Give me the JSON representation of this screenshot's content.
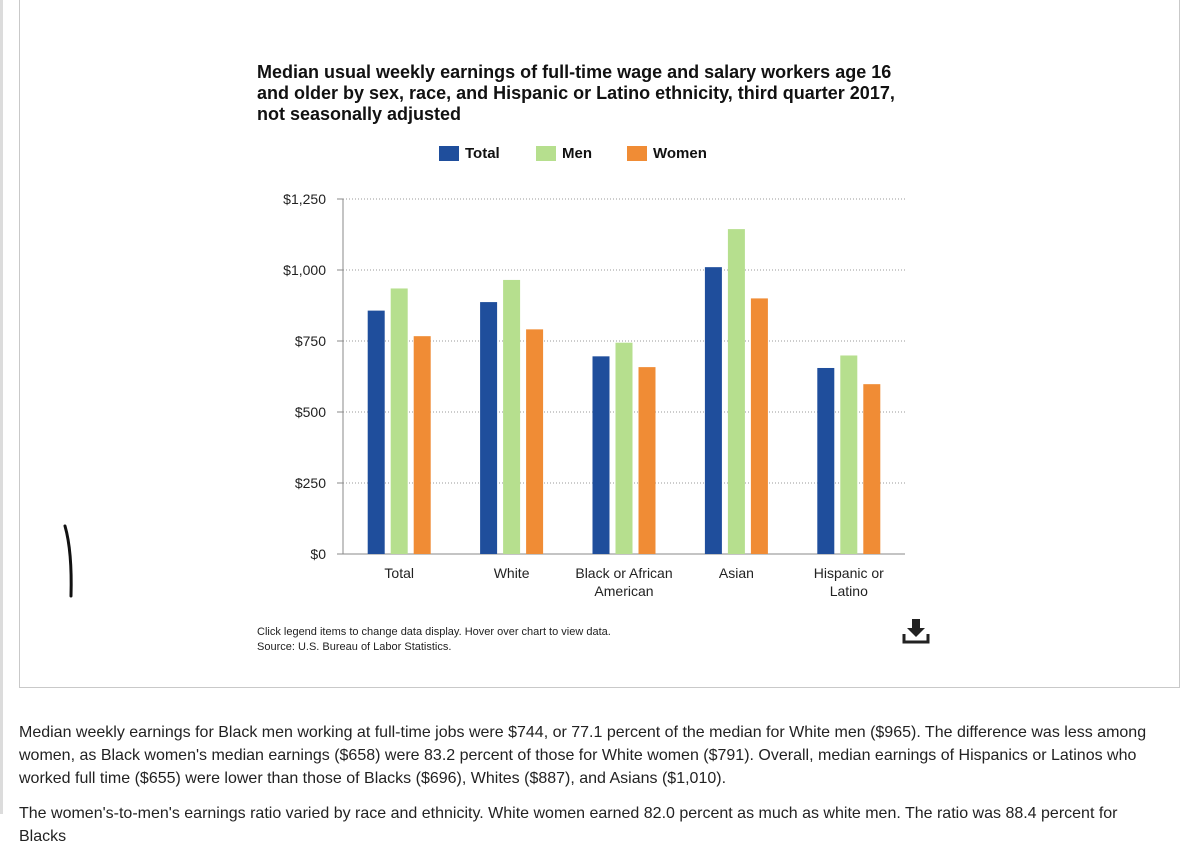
{
  "chart_data": {
    "type": "bar",
    "title": "Median usual weekly earnings of full-time wage and salary workers age 16\nand older by sex, race, and Hispanic or Latino ethnicity, third quarter 2017,\nnot seasonally adjusted",
    "categories": [
      [
        "Total"
      ],
      [
        "White"
      ],
      [
        "Black or African",
        "American"
      ],
      [
        "Asian"
      ],
      [
        "Hispanic or",
        "Latino"
      ]
    ],
    "series": [
      {
        "name": "Total",
        "color": "#1f4e9c",
        "values": [
          857,
          887,
          696,
          1010,
          655
        ]
      },
      {
        "name": "Men",
        "color": "#b6df8e",
        "values": [
          935,
          965,
          744,
          1144,
          699
        ]
      },
      {
        "name": "Women",
        "color": "#f08c35",
        "values": [
          767,
          791,
          658,
          900,
          598
        ]
      }
    ],
    "ylim": [
      0,
      1250
    ],
    "yticks": [
      0,
      250,
      500,
      750,
      1000,
      1250
    ],
    "ytick_labels": [
      "$0",
      "$250",
      "$500",
      "$750",
      "$1,000",
      "$1,250"
    ],
    "xlabel": "",
    "ylabel": "",
    "grid": true,
    "legend_position": "top"
  },
  "footnotes": {
    "hint": "Click legend items to change data display. Hover over chart to view data.",
    "source": "Source: U.S. Bureau of Labor Statistics."
  },
  "icons": {
    "download": "download-icon"
  },
  "article": {
    "paragraph1": "Median weekly earnings for Black men working at full-time jobs were $744, or 77.1 percent of the median for White men ($965). The difference was less among women, as Black women's median earnings ($658) were 83.2 percent of those for White women ($791). Overall, median earnings of Hispanics or Latinos who worked full time ($655) were lower than those of Blacks ($696), Whites ($887), and Asians ($1,010).",
    "paragraph2": "The women's-to-men's earnings ratio varied by race and ethnicity. White women earned 82.0 percent as much as white men. The ratio was 88.4 percent for Blacks"
  }
}
